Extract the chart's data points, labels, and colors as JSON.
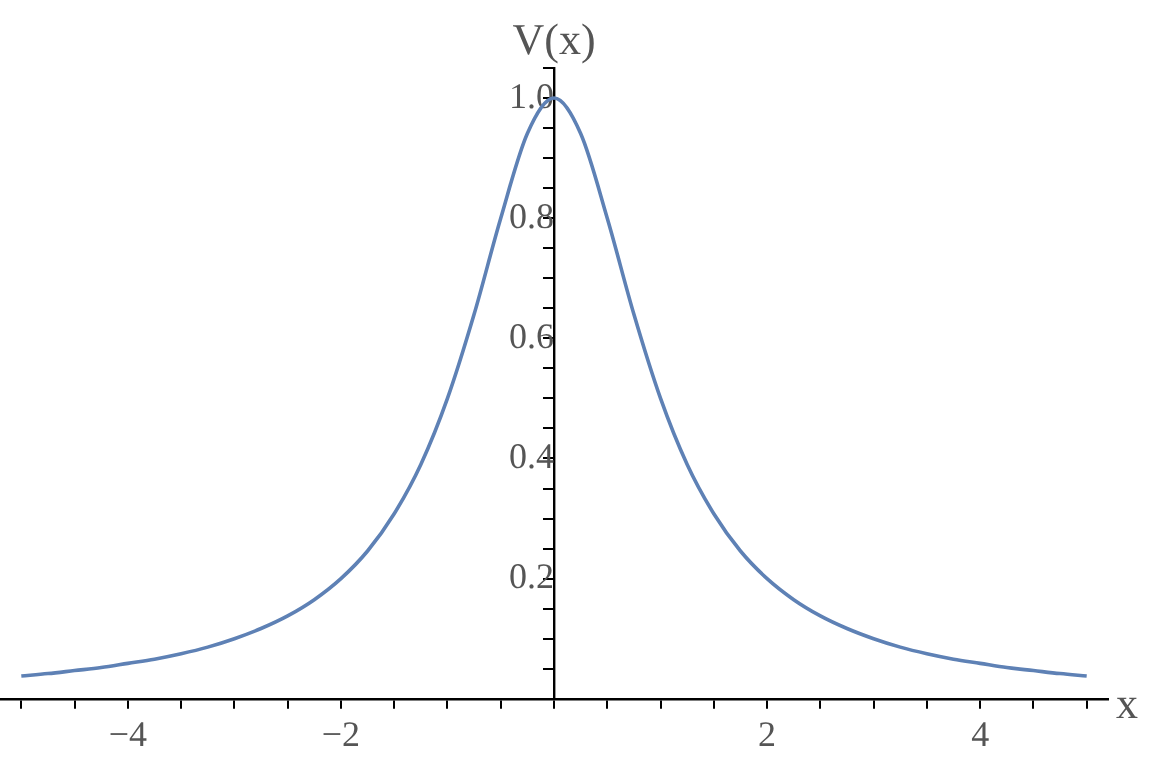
{
  "chart_data": {
    "type": "line",
    "xlabel": "x",
    "ylabel": "V(x)",
    "series": [
      {
        "color": "#5e81b5",
        "x": [
          -5,
          -4.75,
          -4.5,
          -4.25,
          -4,
          -3.75,
          -3.5,
          -3.25,
          -3,
          -2.75,
          -2.5,
          -2.25,
          -2,
          -1.75,
          -1.5,
          -1.25,
          -1,
          -0.75,
          -0.5,
          -0.25,
          0,
          0.25,
          0.5,
          0.75,
          1,
          1.25,
          1.5,
          1.75,
          2,
          2.25,
          2.5,
          2.75,
          3,
          3.25,
          3.5,
          3.75,
          4,
          4.25,
          4.5,
          4.75,
          5
        ],
        "values": [
          0.038,
          0.042,
          0.047,
          0.052,
          0.059,
          0.066,
          0.075,
          0.086,
          0.1,
          0.117,
          0.138,
          0.165,
          0.2,
          0.246,
          0.308,
          0.39,
          0.5,
          0.64,
          0.8,
          0.941,
          1,
          0.941,
          0.8,
          0.64,
          0.5,
          0.39,
          0.308,
          0.246,
          0.2,
          0.165,
          0.138,
          0.117,
          0.1,
          0.086,
          0.075,
          0.066,
          0.059,
          0.052,
          0.047,
          0.042,
          0.038
        ]
      }
    ],
    "xlim": [
      -5.2,
      5.2
    ],
    "ylim": [
      0,
      1.05
    ],
    "xticks": [
      {
        "value": -5,
        "label": null
      },
      {
        "value": -4,
        "label": "−4"
      },
      {
        "value": -3.5,
        "label": null
      },
      {
        "value": -3,
        "label": null
      },
      {
        "value": -2.5,
        "label": null
      },
      {
        "value": -2,
        "label": "−2"
      },
      {
        "value": -1.5,
        "label": null
      },
      {
        "value": -1,
        "label": null
      },
      {
        "value": -0.5,
        "label": null
      },
      {
        "value": 0,
        "label": null
      },
      {
        "value": 0.5,
        "label": null
      },
      {
        "value": 1,
        "label": null
      },
      {
        "value": 1.5,
        "label": null
      },
      2,
      {
        "value": 2.5,
        "label": null
      },
      {
        "value": 3,
        "label": null
      },
      {
        "value": 3.5,
        "label": null
      },
      4,
      {
        "value": 4.5,
        "label": null
      },
      {
        "value": 5,
        "label": null
      },
      {
        "value": -4.5,
        "label": null
      }
    ],
    "yticks": [
      {
        "value": 0.05,
        "label": null
      },
      {
        "value": 0.1,
        "label": null
      },
      {
        "value": 0.15,
        "label": null
      },
      0.2,
      {
        "value": 0.25,
        "label": null
      },
      {
        "value": 0.3,
        "label": null
      },
      {
        "value": 0.35,
        "label": null
      },
      0.4,
      {
        "value": 0.45,
        "label": null
      },
      {
        "value": 0.5,
        "label": null
      },
      {
        "value": 0.55,
        "label": null
      },
      0.6,
      {
        "value": 0.65,
        "label": null
      },
      {
        "value": 0.7,
        "label": null
      },
      {
        "value": 0.75,
        "label": null
      },
      0.8,
      {
        "value": 0.85,
        "label": null
      },
      {
        "value": 0.9,
        "label": null
      },
      {
        "value": 0.95,
        "label": null
      },
      {
        "value": 1,
        "label": "1.0"
      },
      {
        "value": 1.05,
        "label": null
      }
    ],
    "grid": false,
    "legend": false,
    "marker": "none",
    "line_style": "solid"
  }
}
